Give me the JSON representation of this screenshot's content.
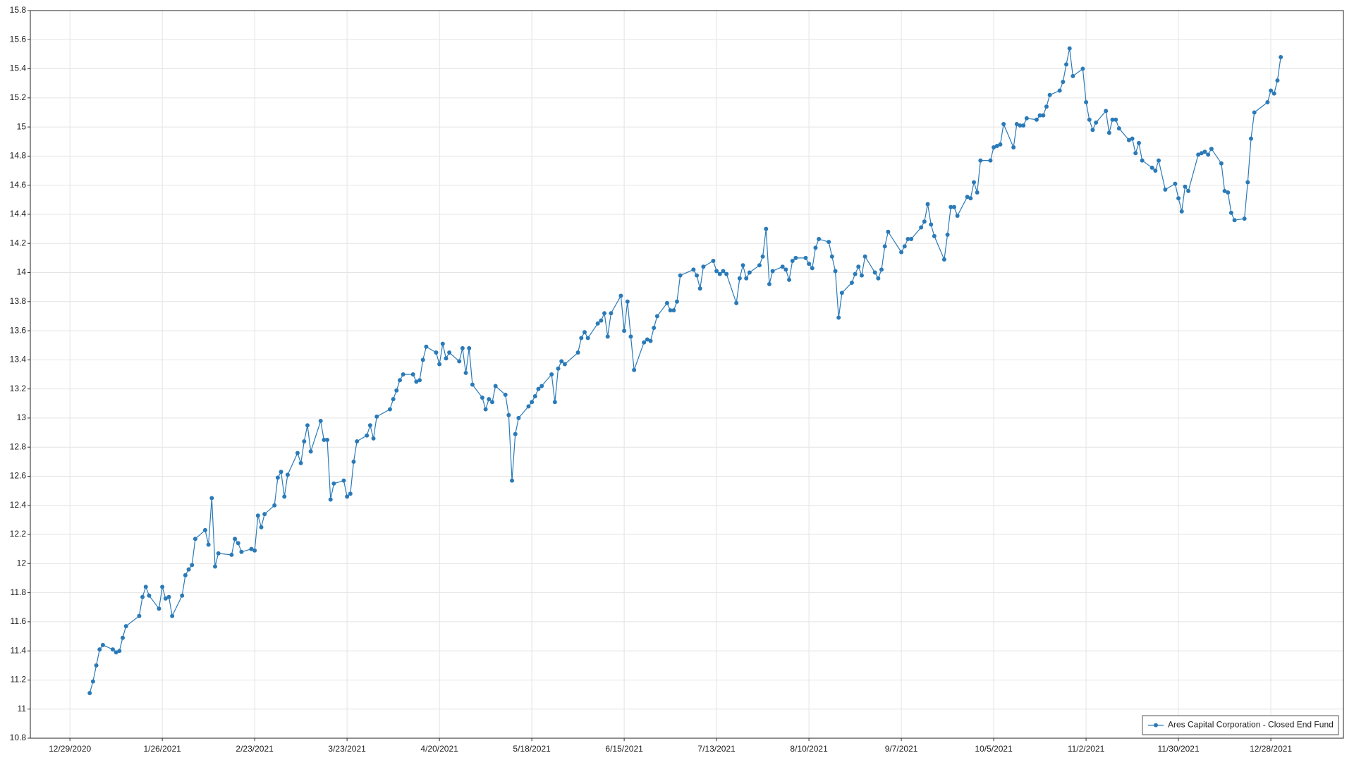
{
  "chart_data": {
    "type": "line",
    "x": [
      "2021-01-04",
      "2021-01-05",
      "2021-01-06",
      "2021-01-07",
      "2021-01-08",
      "2021-01-11",
      "2021-01-12",
      "2021-01-13",
      "2021-01-14",
      "2021-01-15",
      "2021-01-19",
      "2021-01-20",
      "2021-01-21",
      "2021-01-22",
      "2021-01-25",
      "2021-01-26",
      "2021-01-27",
      "2021-01-28",
      "2021-01-29",
      "2021-02-01",
      "2021-02-02",
      "2021-02-03",
      "2021-02-04",
      "2021-02-05",
      "2021-02-08",
      "2021-02-09",
      "2021-02-10",
      "2021-02-11",
      "2021-02-12",
      "2021-02-16",
      "2021-02-17",
      "2021-02-18",
      "2021-02-19",
      "2021-02-22",
      "2021-02-23",
      "2021-02-24",
      "2021-02-25",
      "2021-02-26",
      "2021-03-01",
      "2021-03-02",
      "2021-03-03",
      "2021-03-04",
      "2021-03-05",
      "2021-03-08",
      "2021-03-09",
      "2021-03-10",
      "2021-03-11",
      "2021-03-12",
      "2021-03-15",
      "2021-03-16",
      "2021-03-17",
      "2021-03-18",
      "2021-03-19",
      "2021-03-22",
      "2021-03-23",
      "2021-03-24",
      "2021-03-25",
      "2021-03-26",
      "2021-03-29",
      "2021-03-30",
      "2021-03-31",
      "2021-04-01",
      "2021-04-05",
      "2021-04-06",
      "2021-04-07",
      "2021-04-08",
      "2021-04-09",
      "2021-04-12",
      "2021-04-13",
      "2021-04-14",
      "2021-04-15",
      "2021-04-16",
      "2021-04-19",
      "2021-04-20",
      "2021-04-21",
      "2021-04-22",
      "2021-04-23",
      "2021-04-26",
      "2021-04-27",
      "2021-04-28",
      "2021-04-29",
      "2021-04-30",
      "2021-05-03",
      "2021-05-04",
      "2021-05-05",
      "2021-05-06",
      "2021-05-07",
      "2021-05-10",
      "2021-05-11",
      "2021-05-12",
      "2021-05-13",
      "2021-05-14",
      "2021-05-17",
      "2021-05-18",
      "2021-05-19",
      "2021-05-20",
      "2021-05-21",
      "2021-05-24",
      "2021-05-25",
      "2021-05-26",
      "2021-05-27",
      "2021-05-28",
      "2021-06-01",
      "2021-06-02",
      "2021-06-03",
      "2021-06-04",
      "2021-06-07",
      "2021-06-08",
      "2021-06-09",
      "2021-06-10",
      "2021-06-11",
      "2021-06-14",
      "2021-06-15",
      "2021-06-16",
      "2021-06-17",
      "2021-06-18",
      "2021-06-21",
      "2021-06-22",
      "2021-06-23",
      "2021-06-24",
      "2021-06-25",
      "2021-06-28",
      "2021-06-29",
      "2021-06-30",
      "2021-07-01",
      "2021-07-02",
      "2021-07-06",
      "2021-07-07",
      "2021-07-08",
      "2021-07-09",
      "2021-07-12",
      "2021-07-13",
      "2021-07-14",
      "2021-07-15",
      "2021-07-16",
      "2021-07-19",
      "2021-07-20",
      "2021-07-21",
      "2021-07-22",
      "2021-07-23",
      "2021-07-26",
      "2021-07-27",
      "2021-07-28",
      "2021-07-29",
      "2021-07-30",
      "2021-08-02",
      "2021-08-03",
      "2021-08-04",
      "2021-08-05",
      "2021-08-06",
      "2021-08-09",
      "2021-08-10",
      "2021-08-11",
      "2021-08-12",
      "2021-08-13",
      "2021-08-16",
      "2021-08-17",
      "2021-08-18",
      "2021-08-19",
      "2021-08-20",
      "2021-08-23",
      "2021-08-24",
      "2021-08-25",
      "2021-08-26",
      "2021-08-27",
      "2021-08-30",
      "2021-08-31",
      "2021-09-01",
      "2021-09-02",
      "2021-09-03",
      "2021-09-07",
      "2021-09-08",
      "2021-09-09",
      "2021-09-10",
      "2021-09-13",
      "2021-09-14",
      "2021-09-15",
      "2021-09-16",
      "2021-09-17",
      "2021-09-20",
      "2021-09-21",
      "2021-09-22",
      "2021-09-23",
      "2021-09-24",
      "2021-09-27",
      "2021-09-28",
      "2021-09-29",
      "2021-09-30",
      "2021-10-01",
      "2021-10-04",
      "2021-10-05",
      "2021-10-06",
      "2021-10-07",
      "2021-10-08",
      "2021-10-11",
      "2021-10-12",
      "2021-10-13",
      "2021-10-14",
      "2021-10-15",
      "2021-10-18",
      "2021-10-19",
      "2021-10-20",
      "2021-10-21",
      "2021-10-22",
      "2021-10-25",
      "2021-10-26",
      "2021-10-27",
      "2021-10-28",
      "2021-10-29",
      "2021-11-01",
      "2021-11-02",
      "2021-11-03",
      "2021-11-04",
      "2021-11-05",
      "2021-11-08",
      "2021-11-09",
      "2021-11-10",
      "2021-11-11",
      "2021-11-12",
      "2021-11-15",
      "2021-11-16",
      "2021-11-17",
      "2021-11-18",
      "2021-11-19",
      "2021-11-22",
      "2021-11-23",
      "2021-11-24",
      "2021-11-26",
      "2021-11-29",
      "2021-11-30",
      "2021-12-01",
      "2021-12-02",
      "2021-12-03",
      "2021-12-06",
      "2021-12-07",
      "2021-12-08",
      "2021-12-09",
      "2021-12-10",
      "2021-12-13",
      "2021-12-14",
      "2021-12-15",
      "2021-12-16",
      "2021-12-17",
      "2021-12-20",
      "2021-12-21",
      "2021-12-22",
      "2021-12-23",
      "2021-12-27",
      "2021-12-28",
      "2021-12-29",
      "2021-12-30",
      "2021-12-31"
    ],
    "series": [
      {
        "name": "Ares Capital Corporation - Closed End Fund",
        "color": "#2a7ab8",
        "values": [
          11.11,
          11.19,
          11.3,
          11.41,
          11.44,
          11.41,
          11.39,
          11.4,
          11.49,
          11.57,
          11.64,
          11.77,
          11.84,
          11.78,
          11.69,
          11.84,
          11.76,
          11.77,
          11.64,
          11.78,
          11.92,
          11.96,
          11.99,
          12.17,
          12.23,
          12.13,
          12.45,
          11.98,
          12.07,
          12.06,
          12.17,
          12.14,
          12.08,
          12.1,
          12.09,
          12.33,
          12.25,
          12.34,
          12.4,
          12.59,
          12.63,
          12.46,
          12.61,
          12.76,
          12.69,
          12.84,
          12.95,
          12.77,
          12.98,
          12.85,
          12.85,
          12.44,
          12.55,
          12.57,
          12.46,
          12.48,
          12.7,
          12.84,
          12.88,
          12.95,
          12.86,
          13.01,
          13.06,
          13.13,
          13.19,
          13.26,
          13.3,
          13.3,
          13.25,
          13.26,
          13.4,
          13.49,
          13.45,
          13.37,
          13.51,
          13.41,
          13.45,
          13.39,
          13.48,
          13.31,
          13.48,
          13.23,
          13.14,
          13.06,
          13.13,
          13.11,
          13.22,
          13.16,
          13.02,
          12.57,
          12.89,
          13.0,
          13.08,
          13.11,
          13.15,
          13.2,
          13.22,
          13.3,
          13.11,
          13.34,
          13.39,
          13.37,
          13.45,
          13.55,
          13.59,
          13.55,
          13.65,
          13.67,
          13.72,
          13.56,
          13.72,
          13.84,
          13.6,
          13.8,
          13.56,
          13.33,
          13.52,
          13.54,
          13.53,
          13.62,
          13.7,
          13.79,
          13.74,
          13.74,
          13.8,
          13.98,
          14.02,
          13.98,
          13.89,
          14.04,
          14.08,
          14.01,
          13.99,
          14.01,
          13.99,
          13.79,
          13.96,
          14.05,
          13.96,
          14.0,
          14.05,
          14.11,
          14.3,
          13.92,
          14.01,
          14.04,
          14.02,
          13.95,
          14.08,
          14.1,
          14.1,
          14.06,
          14.03,
          14.17,
          14.23,
          14.21,
          14.11,
          14.01,
          13.69,
          13.86,
          13.93,
          13.99,
          14.04,
          13.98,
          14.11,
          14.0,
          13.96,
          14.02,
          14.18,
          14.28,
          14.14,
          14.18,
          14.23,
          14.23,
          14.31,
          14.35,
          14.47,
          14.33,
          14.25,
          14.09,
          14.26,
          14.45,
          14.45,
          14.39,
          14.52,
          14.51,
          14.62,
          14.55,
          14.77,
          14.77,
          14.86,
          14.87,
          14.88,
          15.02,
          14.86,
          15.02,
          15.01,
          15.01,
          15.06,
          15.05,
          15.08,
          15.08,
          15.14,
          15.22,
          15.25,
          15.31,
          15.43,
          15.54,
          15.35,
          15.4,
          15.17,
          15.05,
          14.98,
          15.03,
          15.11,
          14.96,
          15.05,
          15.05,
          14.99,
          14.91,
          14.92,
          14.82,
          14.89,
          14.77,
          14.72,
          14.7,
          14.77,
          14.57,
          14.61,
          14.51,
          14.42,
          14.59,
          14.56,
          14.81,
          14.82,
          14.83,
          14.81,
          14.85,
          14.75,
          14.56,
          14.55,
          14.41,
          14.36,
          14.37,
          14.62,
          14.92,
          15.1,
          15.17,
          15.25,
          15.23,
          15.32,
          15.48
        ]
      }
    ],
    "xlim": [
      "2020-12-17",
      "2022-01-19"
    ],
    "xticks": [
      {
        "value": "2020-12-29",
        "label": "12/29/2020"
      },
      {
        "value": "2021-01-26",
        "label": "1/26/2021"
      },
      {
        "value": "2021-02-23",
        "label": "2/23/2021"
      },
      {
        "value": "2021-03-23",
        "label": "3/23/2021"
      },
      {
        "value": "2021-04-20",
        "label": "4/20/2021"
      },
      {
        "value": "2021-05-18",
        "label": "5/18/2021"
      },
      {
        "value": "2021-06-15",
        "label": "6/15/2021"
      },
      {
        "value": "2021-07-13",
        "label": "7/13/2021"
      },
      {
        "value": "2021-08-10",
        "label": "8/10/2021"
      },
      {
        "value": "2021-09-07",
        "label": "9/7/2021"
      },
      {
        "value": "2021-10-05",
        "label": "10/5/2021"
      },
      {
        "value": "2021-11-02",
        "label": "11/2/2021"
      },
      {
        "value": "2021-11-30",
        "label": "11/30/2021"
      },
      {
        "value": "2021-12-28",
        "label": "12/28/2021"
      }
    ],
    "ylim": [
      10.8,
      15.8
    ],
    "yticks": [
      10.8,
      11,
      11.2,
      11.4,
      11.6,
      11.8,
      12,
      12.2,
      12.4,
      12.6,
      12.8,
      13,
      13.2,
      13.4,
      13.6,
      13.8,
      14,
      14.2,
      14.4,
      14.6,
      14.8,
      15,
      15.2,
      15.4,
      15.6,
      15.8
    ],
    "grid": true,
    "legend": "lower right"
  }
}
